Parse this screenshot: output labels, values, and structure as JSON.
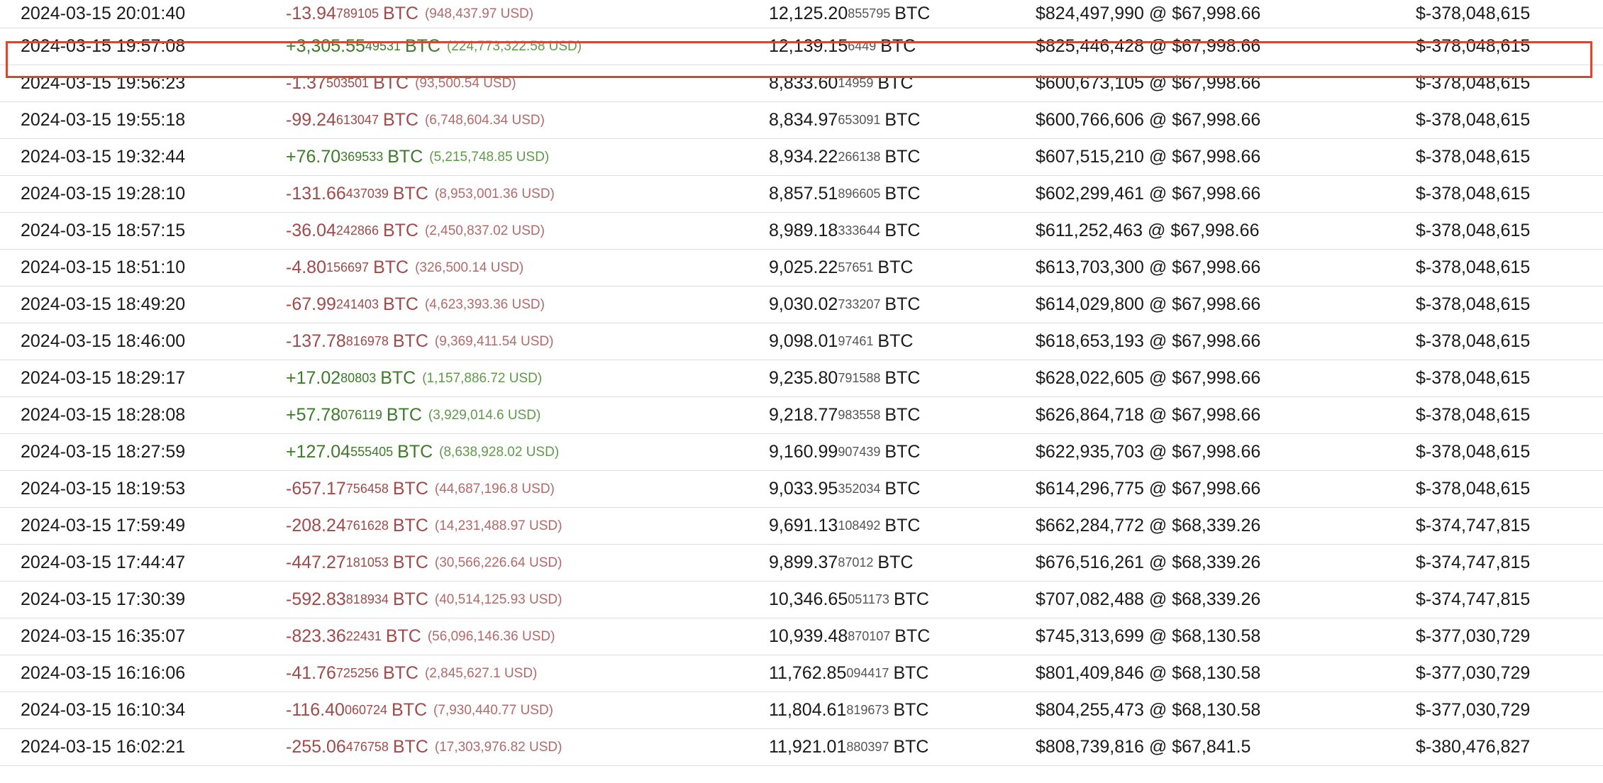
{
  "rows": [
    {
      "time": "2024-03-15 20:01:40",
      "sign": "neg",
      "chg_main": "-13.94",
      "chg_small": "789105",
      "chg_unit": "BTC",
      "chg_usd": "(948,437.97 USD)",
      "bal_main": "12,125.20",
      "bal_small": "855795",
      "bal_unit": "BTC",
      "value": "$824,497,990 @ $67,998.66",
      "pnl": "$-378,048,615"
    },
    {
      "time": "2024-03-15 19:57:08",
      "sign": "pos",
      "chg_main": "+3,305.55",
      "chg_small": "49531",
      "chg_unit": "BTC",
      "chg_usd": "(224,773,322.58 USD)",
      "bal_main": "12,139.15",
      "bal_small": "6449",
      "bal_unit": "BTC",
      "value": "$825,446,428 @ $67,998.66",
      "pnl": "$-378,048,615",
      "highlighted": true
    },
    {
      "time": "2024-03-15 19:56:23",
      "sign": "neg",
      "chg_main": "-1.37",
      "chg_small": "503501",
      "chg_unit": "BTC",
      "chg_usd": "(93,500.54 USD)",
      "bal_main": "8,833.60",
      "bal_small": "14959",
      "bal_unit": "BTC",
      "value": "$600,673,105 @ $67,998.66",
      "pnl": "$-378,048,615"
    },
    {
      "time": "2024-03-15 19:55:18",
      "sign": "neg",
      "chg_main": "-99.24",
      "chg_small": "613047",
      "chg_unit": "BTC",
      "chg_usd": "(6,748,604.34 USD)",
      "bal_main": "8,834.97",
      "bal_small": "653091",
      "bal_unit": "BTC",
      "value": "$600,766,606 @ $67,998.66",
      "pnl": "$-378,048,615"
    },
    {
      "time": "2024-03-15 19:32:44",
      "sign": "pos",
      "chg_main": "+76.70",
      "chg_small": "369533",
      "chg_unit": "BTC",
      "chg_usd": "(5,215,748.85 USD)",
      "bal_main": "8,934.22",
      "bal_small": "266138",
      "bal_unit": "BTC",
      "value": "$607,515,210 @ $67,998.66",
      "pnl": "$-378,048,615"
    },
    {
      "time": "2024-03-15 19:28:10",
      "sign": "neg",
      "chg_main": "-131.66",
      "chg_small": "437039",
      "chg_unit": "BTC",
      "chg_usd": "(8,953,001.36 USD)",
      "bal_main": "8,857.51",
      "bal_small": "896605",
      "bal_unit": "BTC",
      "value": "$602,299,461 @ $67,998.66",
      "pnl": "$-378,048,615"
    },
    {
      "time": "2024-03-15 18:57:15",
      "sign": "neg",
      "chg_main": "-36.04",
      "chg_small": "242866",
      "chg_unit": "BTC",
      "chg_usd": "(2,450,837.02 USD)",
      "bal_main": "8,989.18",
      "bal_small": "333644",
      "bal_unit": "BTC",
      "value": "$611,252,463 @ $67,998.66",
      "pnl": "$-378,048,615"
    },
    {
      "time": "2024-03-15 18:51:10",
      "sign": "neg",
      "chg_main": "-4.80",
      "chg_small": "156697",
      "chg_unit": "BTC",
      "chg_usd": "(326,500.14 USD)",
      "bal_main": "9,025.22",
      "bal_small": "57651",
      "bal_unit": "BTC",
      "value": "$613,703,300 @ $67,998.66",
      "pnl": "$-378,048,615"
    },
    {
      "time": "2024-03-15 18:49:20",
      "sign": "neg",
      "chg_main": "-67.99",
      "chg_small": "241403",
      "chg_unit": "BTC",
      "chg_usd": "(4,623,393.36 USD)",
      "bal_main": "9,030.02",
      "bal_small": "733207",
      "bal_unit": "BTC",
      "value": "$614,029,800 @ $67,998.66",
      "pnl": "$-378,048,615"
    },
    {
      "time": "2024-03-15 18:46:00",
      "sign": "neg",
      "chg_main": "-137.78",
      "chg_small": "816978",
      "chg_unit": "BTC",
      "chg_usd": "(9,369,411.54 USD)",
      "bal_main": "9,098.01",
      "bal_small": "97461",
      "bal_unit": "BTC",
      "value": "$618,653,193 @ $67,998.66",
      "pnl": "$-378,048,615"
    },
    {
      "time": "2024-03-15 18:29:17",
      "sign": "pos",
      "chg_main": "+17.02",
      "chg_small": "80803",
      "chg_unit": "BTC",
      "chg_usd": "(1,157,886.72 USD)",
      "bal_main": "9,235.80",
      "bal_small": "791588",
      "bal_unit": "BTC",
      "value": "$628,022,605 @ $67,998.66",
      "pnl": "$-378,048,615"
    },
    {
      "time": "2024-03-15 18:28:08",
      "sign": "pos",
      "chg_main": "+57.78",
      "chg_small": "076119",
      "chg_unit": "BTC",
      "chg_usd": "(3,929,014.6 USD)",
      "bal_main": "9,218.77",
      "bal_small": "983558",
      "bal_unit": "BTC",
      "value": "$626,864,718 @ $67,998.66",
      "pnl": "$-378,048,615"
    },
    {
      "time": "2024-03-15 18:27:59",
      "sign": "pos",
      "chg_main": "+127.04",
      "chg_small": "555405",
      "chg_unit": "BTC",
      "chg_usd": "(8,638,928.02 USD)",
      "bal_main": "9,160.99",
      "bal_small": "907439",
      "bal_unit": "BTC",
      "value": "$622,935,703 @ $67,998.66",
      "pnl": "$-378,048,615"
    },
    {
      "time": "2024-03-15 18:19:53",
      "sign": "neg",
      "chg_main": "-657.17",
      "chg_small": "756458",
      "chg_unit": "BTC",
      "chg_usd": "(44,687,196.8 USD)",
      "bal_main": "9,033.95",
      "bal_small": "352034",
      "bal_unit": "BTC",
      "value": "$614,296,775 @ $67,998.66",
      "pnl": "$-378,048,615"
    },
    {
      "time": "2024-03-15 17:59:49",
      "sign": "neg",
      "chg_main": "-208.24",
      "chg_small": "761628",
      "chg_unit": "BTC",
      "chg_usd": "(14,231,488.97 USD)",
      "bal_main": "9,691.13",
      "bal_small": "108492",
      "bal_unit": "BTC",
      "value": "$662,284,772 @ $68,339.26",
      "pnl": "$-374,747,815"
    },
    {
      "time": "2024-03-15 17:44:47",
      "sign": "neg",
      "chg_main": "-447.27",
      "chg_small": "181053",
      "chg_unit": "BTC",
      "chg_usd": "(30,566,226.64 USD)",
      "bal_main": "9,899.37",
      "bal_small": "87012",
      "bal_unit": "BTC",
      "value": "$676,516,261 @ $68,339.26",
      "pnl": "$-374,747,815"
    },
    {
      "time": "2024-03-15 17:30:39",
      "sign": "neg",
      "chg_main": "-592.83",
      "chg_small": "818934",
      "chg_unit": "BTC",
      "chg_usd": "(40,514,125.93 USD)",
      "bal_main": "10,346.65",
      "bal_small": "051173",
      "bal_unit": "BTC",
      "value": "$707,082,488 @ $68,339.26",
      "pnl": "$-374,747,815"
    },
    {
      "time": "2024-03-15 16:35:07",
      "sign": "neg",
      "chg_main": "-823.36",
      "chg_small": "22431",
      "chg_unit": "BTC",
      "chg_usd": "(56,096,146.36 USD)",
      "bal_main": "10,939.48",
      "bal_small": "870107",
      "bal_unit": "BTC",
      "value": "$745,313,699 @ $68,130.58",
      "pnl": "$-377,030,729"
    },
    {
      "time": "2024-03-15 16:16:06",
      "sign": "neg",
      "chg_main": "-41.76",
      "chg_small": "725256",
      "chg_unit": "BTC",
      "chg_usd": "(2,845,627.1 USD)",
      "bal_main": "11,762.85",
      "bal_small": "094417",
      "bal_unit": "BTC",
      "value": "$801,409,846 @ $68,130.58",
      "pnl": "$-377,030,729"
    },
    {
      "time": "2024-03-15 16:10:34",
      "sign": "neg",
      "chg_main": "-116.40",
      "chg_small": "060724",
      "chg_unit": "BTC",
      "chg_usd": "(7,930,440.77 USD)",
      "bal_main": "11,804.61",
      "bal_small": "819673",
      "bal_unit": "BTC",
      "value": "$804,255,473 @ $68,130.58",
      "pnl": "$-377,030,729"
    },
    {
      "time": "2024-03-15 16:02:21",
      "sign": "neg",
      "chg_main": "-255.06",
      "chg_small": "476758",
      "chg_unit": "BTC",
      "chg_usd": "(17,303,976.82 USD)",
      "bal_main": "11,921.01",
      "bal_small": "880397",
      "bal_unit": "BTC",
      "value": "$808,739,816 @ $67,841.5",
      "pnl": "$-380,476,827"
    }
  ],
  "colors": {
    "negative": "#a04a4a",
    "positive": "#3d7a2a",
    "highlight_border": "#d24a37",
    "row_divider": "#dcdcdc"
  }
}
